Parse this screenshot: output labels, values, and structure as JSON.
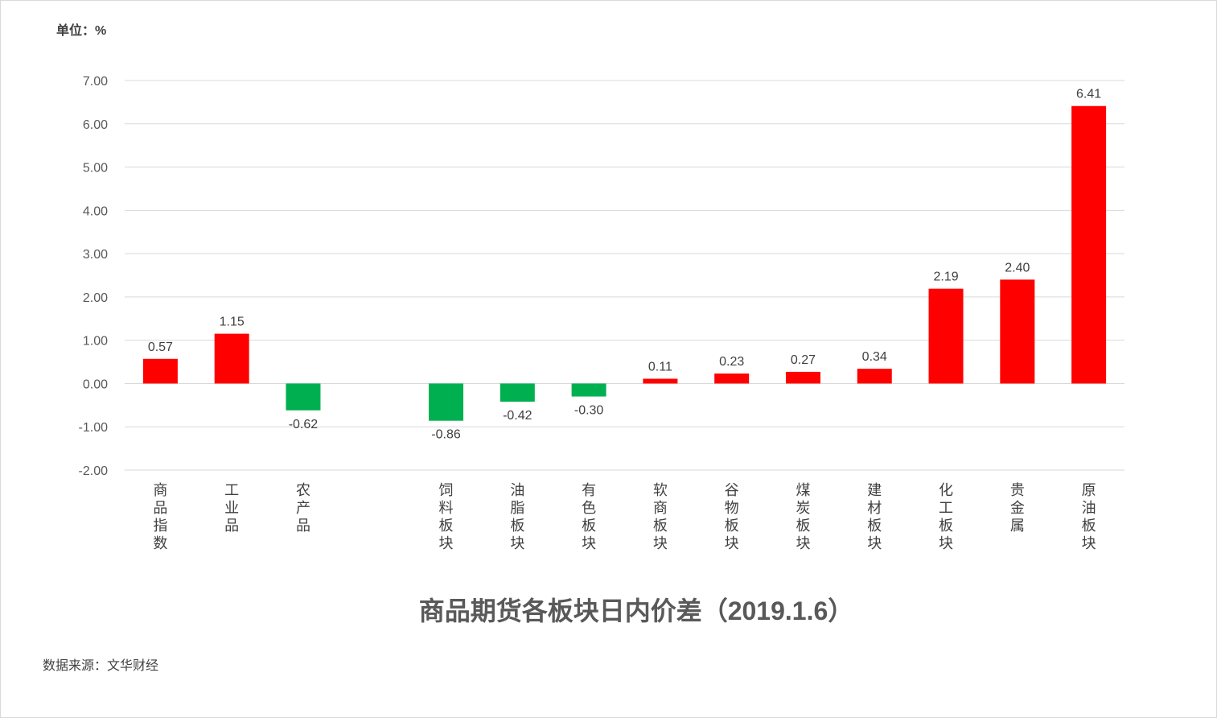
{
  "chart_data": {
    "type": "bar",
    "title": "商品期货各板块日内价差（2019.1.6）",
    "unit_label": "单位：%",
    "source": "数据来源：文华财经",
    "categories": [
      "商品指数",
      "工业品",
      "农产品",
      "",
      "饲料板块",
      "油脂板块",
      "有色板块",
      "软商板块",
      "谷物板块",
      "煤炭板块",
      "建材板块",
      "化工板块",
      "贵金属",
      "原油板块"
    ],
    "values": [
      0.57,
      1.15,
      -0.62,
      null,
      -0.86,
      -0.42,
      -0.3,
      0.11,
      0.23,
      0.27,
      0.34,
      2.19,
      2.4,
      6.41
    ],
    "value_labels": [
      "0.57",
      "1.15",
      "-0.62",
      "",
      "-0.86",
      "-0.42",
      "-0.30",
      "0.11",
      "0.23",
      "0.27",
      "0.34",
      "2.19",
      "2.40",
      "6.41"
    ],
    "ylim": [
      -2,
      7
    ],
    "yticks": [
      7,
      6,
      5,
      4,
      3,
      2,
      1,
      0,
      -1,
      -2
    ],
    "ytick_labels": [
      "7.00",
      "6.00",
      "5.00",
      "4.00",
      "3.00",
      "2.00",
      "1.00",
      "0.00",
      "-1.00",
      "-2.00"
    ],
    "grid": true,
    "legend": "none",
    "colors": {
      "positive": "#ff0000",
      "negative": "#00b050",
      "grid": "#d9d9d9"
    }
  }
}
